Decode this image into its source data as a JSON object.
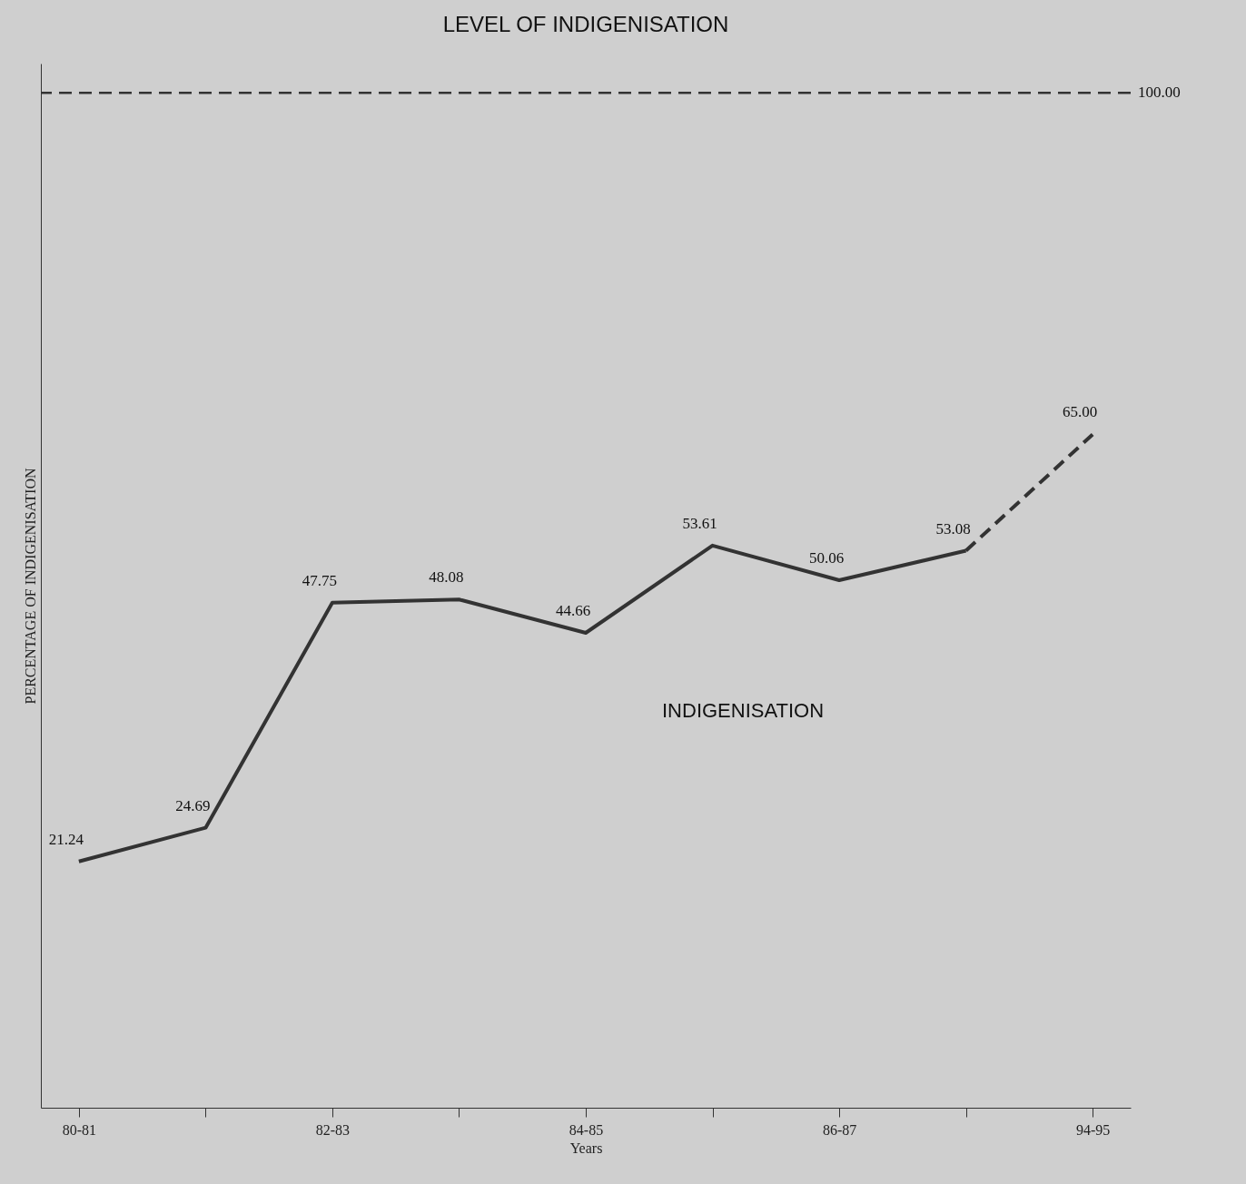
{
  "chart_data": {
    "type": "line",
    "title": "LEVEL OF INDIGENISATION",
    "xlabel": "Years",
    "ylabel": "PERCENTAGE OF INDIGENISATION",
    "categories": [
      "80-81",
      null,
      "82-83",
      null,
      "84-85",
      null,
      "86-87",
      null,
      "94-95"
    ],
    "ylim": [
      -4,
      103
    ],
    "series": [
      {
        "color": "#333333",
        "line_style": "solid",
        "values": [
          21.24,
          24.69,
          47.75,
          48.08,
          44.66,
          53.61,
          50.06,
          53.08,
          null
        ],
        "value_labels": [
          "21.24",
          "24.69",
          "47.75",
          "48.08",
          "44.66",
          "53.61",
          "50.06",
          "53.08",
          null
        ]
      },
      {
        "color": "#333333",
        "line_style": "dashed",
        "values": [
          null,
          null,
          null,
          null,
          null,
          null,
          null,
          53.08,
          65.0
        ],
        "value_labels": [
          null,
          null,
          null,
          null,
          null,
          null,
          null,
          null,
          "65.00"
        ]
      }
    ],
    "ref_lines": [
      {
        "axis": "y",
        "value": 100,
        "label": "100.00",
        "color": "#333333",
        "line_style": "dashed"
      }
    ],
    "annotations": [
      "INDIGENISATION"
    ],
    "grid": false,
    "marker": "none"
  }
}
